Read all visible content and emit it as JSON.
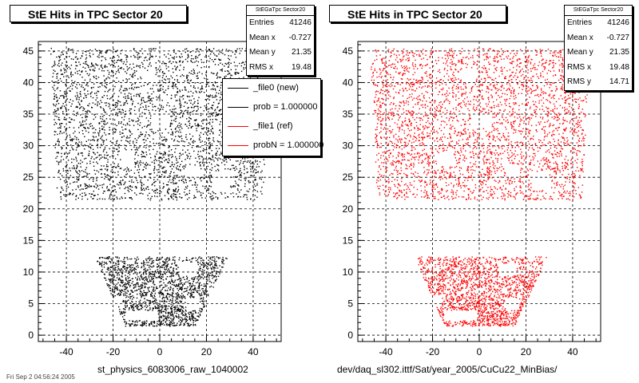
{
  "footer_text": "Fri Sep 2 04:56:24 2005",
  "chart_data": [
    {
      "type": "scatter",
      "title": "StE Hits in TPC Sector 20",
      "stats_title": "StEGaTpc Sector20",
      "stats": [
        {
          "label": "Entries",
          "value": "41246"
        },
        {
          "label": "Mean x",
          "value": "-0.727"
        },
        {
          "label": "Mean y",
          "value": "21.35"
        },
        {
          "label": "RMS x",
          "value": "19.48"
        }
      ],
      "marker_color": "#000000",
      "xlim": [
        -52,
        52
      ],
      "ylim": [
        -1,
        46.5
      ],
      "xticks": [
        -40,
        -20,
        0,
        20,
        40
      ],
      "yticks": [
        0,
        5,
        10,
        15,
        20,
        25,
        30,
        35,
        40,
        45
      ],
      "grid": true,
      "caption": "st_physics_6083006_raw_1040002",
      "legend": {
        "placement": "top-right",
        "entries": [
          {
            "label": "_file0 (new)",
            "color": "#000000"
          },
          {
            "label": "prob = 1.000000",
            "color": "#000000"
          },
          {
            "label": "_file1 (ref)",
            "color": "#ff0000"
          },
          {
            "label": "probN = 1.000000",
            "color": "#ff0000"
          }
        ]
      },
      "regions": [
        {
          "name": "outer sector",
          "x_at_y_min": [
            -44,
            44
          ],
          "x_at_y_max": [
            -47,
            47
          ],
          "y": [
            21.5,
            45.5
          ]
        },
        {
          "name": "inner sector",
          "x_at_y_min": [
            -15,
            15
          ],
          "x_at_y_max": [
            -28,
            29
          ],
          "y": [
            1.5,
            12.5
          ]
        }
      ]
    },
    {
      "type": "scatter",
      "title": "StE Hits in TPC Sector 20",
      "stats_title": "StEGaTpc Sector20",
      "stats": [
        {
          "label": "Entries",
          "value": "41246"
        },
        {
          "label": "Mean x",
          "value": "-0.727"
        },
        {
          "label": "Mean y",
          "value": "21.35"
        },
        {
          "label": "RMS x",
          "value": "19.48"
        },
        {
          "label": "RMS y",
          "value": "14.71"
        }
      ],
      "marker_color": "#ff0000",
      "xlim": [
        -52,
        52
      ],
      "ylim": [
        -1,
        46.5
      ],
      "xticks": [
        -40,
        -20,
        0,
        20,
        40
      ],
      "yticks": [
        0,
        5,
        10,
        15,
        20,
        25,
        30,
        35,
        40,
        45
      ],
      "grid": true,
      "caption": "dev/daq_sl302.ittf/Sat/year_2005/CuCu22_MinBias/",
      "regions": [
        {
          "name": "outer sector",
          "x_at_y_min": [
            -44,
            44
          ],
          "x_at_y_max": [
            -47,
            47
          ],
          "y": [
            21.5,
            45.5
          ]
        },
        {
          "name": "inner sector",
          "x_at_y_min": [
            -15,
            15
          ],
          "x_at_y_max": [
            -28,
            29
          ],
          "y": [
            1.5,
            12.5
          ]
        }
      ]
    }
  ]
}
